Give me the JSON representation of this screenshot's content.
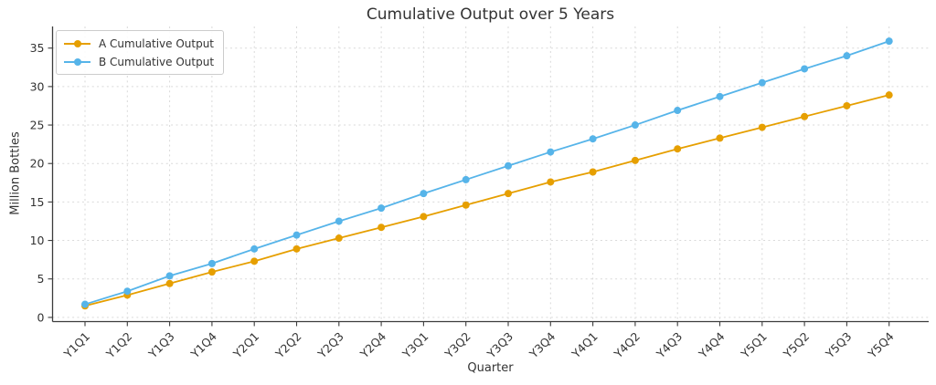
{
  "chart_data": {
    "type": "line",
    "title": "Cumulative Output over 5 Years",
    "xlabel": "Quarter",
    "ylabel": "Million Bottles",
    "categories": [
      "Y1Q1",
      "Y1Q2",
      "Y1Q3",
      "Y1Q4",
      "Y2Q1",
      "Y2Q2",
      "Y2Q3",
      "Y2Q4",
      "Y3Q1",
      "Y3Q2",
      "Y3Q3",
      "Y3Q4",
      "Y4Q1",
      "Y4Q2",
      "Y4Q3",
      "Y4Q4",
      "Y5Q1",
      "Y5Q2",
      "Y5Q3",
      "Y5Q4"
    ],
    "series": [
      {
        "name": "A Cumulative Output",
        "color": "#E69F00",
        "values": [
          1.5,
          2.9,
          4.4,
          5.9,
          7.3,
          8.9,
          10.3,
          11.7,
          13.1,
          14.6,
          16.1,
          17.6,
          18.9,
          20.4,
          21.9,
          23.3,
          24.7,
          26.1,
          27.5,
          28.9
        ]
      },
      {
        "name": "B Cumulative Output",
        "color": "#56B4E9",
        "values": [
          1.7,
          3.4,
          5.4,
          7.0,
          8.9,
          10.7,
          12.5,
          14.2,
          16.1,
          17.9,
          19.7,
          21.5,
          23.2,
          25.0,
          26.9,
          28.7,
          30.5,
          32.3,
          34.0,
          35.9
        ]
      }
    ],
    "yticks": [
      0,
      5,
      10,
      15,
      20,
      25,
      30,
      35
    ],
    "ylim": [
      -0.8,
      37.8
    ],
    "grid": true,
    "legend_position": "upper left",
    "colors": {
      "text": "#333333",
      "grid": "#d9d9d9",
      "spine": "#3c3c3c",
      "background": "#ffffff"
    }
  }
}
